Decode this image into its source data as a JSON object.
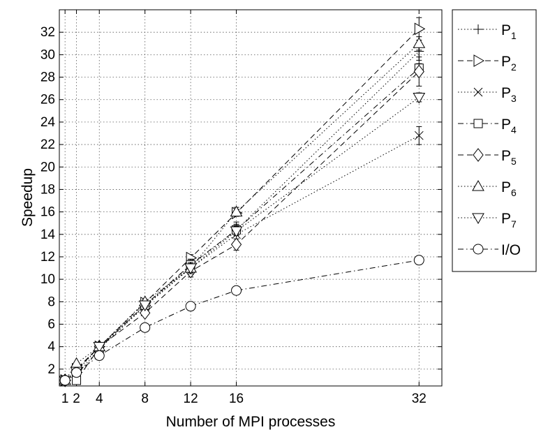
{
  "chart_data": {
    "type": "line",
    "title": "",
    "xlabel": "Number of MPI processes",
    "ylabel": "Speedup",
    "xlim": [
      0.5,
      34
    ],
    "ylim": [
      0.5,
      34
    ],
    "grid": true,
    "legend_position": "right, outside plot",
    "x_ticks": [
      1,
      2,
      4,
      8,
      12,
      16,
      32
    ],
    "x_tick_labels": [
      "1",
      "2",
      "4",
      "8",
      "12",
      "16",
      "32"
    ],
    "y_ticks": [
      2,
      4,
      6,
      8,
      10,
      12,
      14,
      16,
      18,
      20,
      22,
      24,
      26,
      28,
      30,
      32
    ],
    "y_tick_labels": [
      "2",
      "4",
      "6",
      "8",
      "10",
      "12",
      "14",
      "16",
      "18",
      "20",
      "22",
      "24",
      "26",
      "28",
      "30",
      "32"
    ],
    "x": [
      1,
      2,
      4,
      8,
      12,
      16,
      32
    ],
    "series": [
      {
        "name": "P",
        "sub": "1",
        "marker": "plus",
        "dash": "dotted",
        "values": [
          1,
          1.8,
          4.0,
          7.7,
          11.2,
          14.4,
          30.3
        ],
        "err": [
          0,
          0.1,
          0.1,
          0.2,
          0.5,
          0.5,
          0.8
        ]
      },
      {
        "name": "P",
        "sub": "2",
        "marker": "triangle-right",
        "dash": "dashed",
        "values": [
          1,
          2.0,
          4.0,
          7.9,
          11.9,
          15.9,
          32.3
        ],
        "err": [
          0,
          0.1,
          0.1,
          0.2,
          0.3,
          0.3,
          1.0
        ]
      },
      {
        "name": "P",
        "sub": "3",
        "marker": "x",
        "dash": "dotted",
        "values": [
          1,
          1.5,
          3.8,
          7.6,
          11.0,
          14.0,
          22.8
        ],
        "err": [
          0,
          0.1,
          0.1,
          0.2,
          0.8,
          1.1,
          0.8
        ]
      },
      {
        "name": "P",
        "sub": "4",
        "marker": "square",
        "dash": "dashdot",
        "values": [
          1,
          1.0,
          3.9,
          7.7,
          11.3,
          14.4,
          28.8
        ],
        "err": [
          0,
          0.1,
          0.1,
          0.2,
          0.4,
          0.4,
          0.4
        ]
      },
      {
        "name": "P",
        "sub": "5",
        "marker": "diamond",
        "dash": "dashed",
        "values": [
          1,
          1.9,
          4.0,
          7.0,
          10.7,
          13.1,
          28.5
        ],
        "err": [
          0,
          0.1,
          0.1,
          0.2,
          0.3,
          0.5,
          1.3
        ]
      },
      {
        "name": "P",
        "sub": "6",
        "marker": "triangle-up",
        "dash": "dotted",
        "values": [
          1,
          2.5,
          4.0,
          8.0,
          11.0,
          16.0,
          31.0
        ],
        "err": [
          0,
          0.1,
          0.1,
          0.2,
          0.4,
          0.4,
          0.6
        ]
      },
      {
        "name": "P",
        "sub": "7",
        "marker": "triangle-down",
        "dash": "dotted",
        "values": [
          1,
          1.8,
          4.0,
          7.7,
          11.0,
          14.3,
          26.2
        ],
        "err": [
          0,
          0.1,
          0.1,
          0.2,
          0.5,
          0.4,
          0.4
        ]
      },
      {
        "name": "I/O",
        "sub": "",
        "marker": "circle",
        "dash": "dashdot",
        "values": [
          1,
          1.7,
          3.2,
          5.7,
          7.6,
          9.0,
          11.7
        ],
        "err": [
          0,
          0.1,
          0.1,
          0.2,
          0.2,
          0.2,
          0.3
        ]
      }
    ]
  }
}
